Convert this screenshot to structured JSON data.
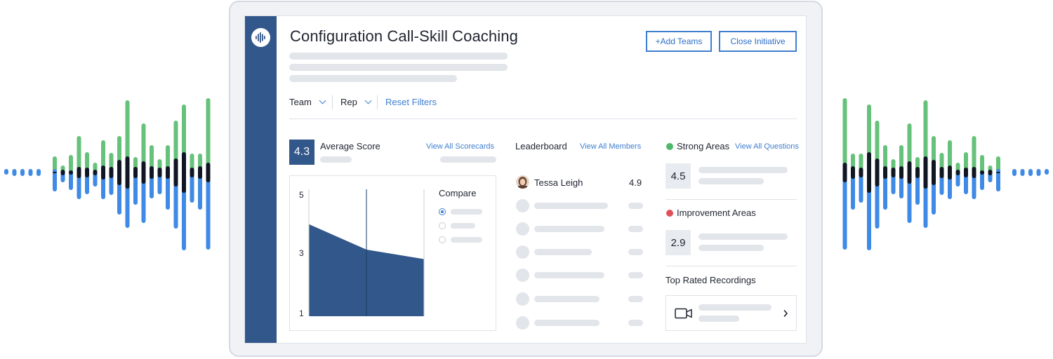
{
  "app": {
    "title": "Configuration Call-Skill Coaching",
    "buttons": {
      "add_teams": "+Add Teams",
      "close_initiative": "Close Initiative"
    }
  },
  "filters": {
    "team": "Team",
    "rep": "Rep",
    "reset": "Reset Filters"
  },
  "average_score": {
    "value": "4.3",
    "label": "Average Score",
    "link": "View All Scorecards",
    "compare_label": "Compare"
  },
  "chart_data": {
    "type": "area",
    "yticks": [
      "5",
      "3",
      "1"
    ],
    "ylim": [
      1,
      5
    ],
    "values": [
      3.9,
      3.1,
      2.8
    ],
    "grid": false
  },
  "leaderboard": {
    "title": "Leaderboard",
    "link": "View All Members",
    "top": {
      "name": "Tessa Leigh",
      "score": "4.9"
    }
  },
  "strong_areas": {
    "title": "Strong Areas",
    "link": "View All Questions",
    "score": "4.5"
  },
  "improvement_areas": {
    "title": "Improvement Areas",
    "score": "2.9"
  },
  "recordings": {
    "title": "Top Rated Recordings"
  },
  "icons": [
    "logo-waveform-icon",
    "chevron-down-icon",
    "video-camera-icon",
    "chevron-right-icon"
  ],
  "colors": {
    "sidebar": "#32578a",
    "accent": "#3f7fd0",
    "strong": "#4fb76b",
    "improvement": "#e0505a",
    "wave_green": "#66c27a",
    "wave_blue": "#3e8ae6",
    "wave_dark": "#101623"
  }
}
